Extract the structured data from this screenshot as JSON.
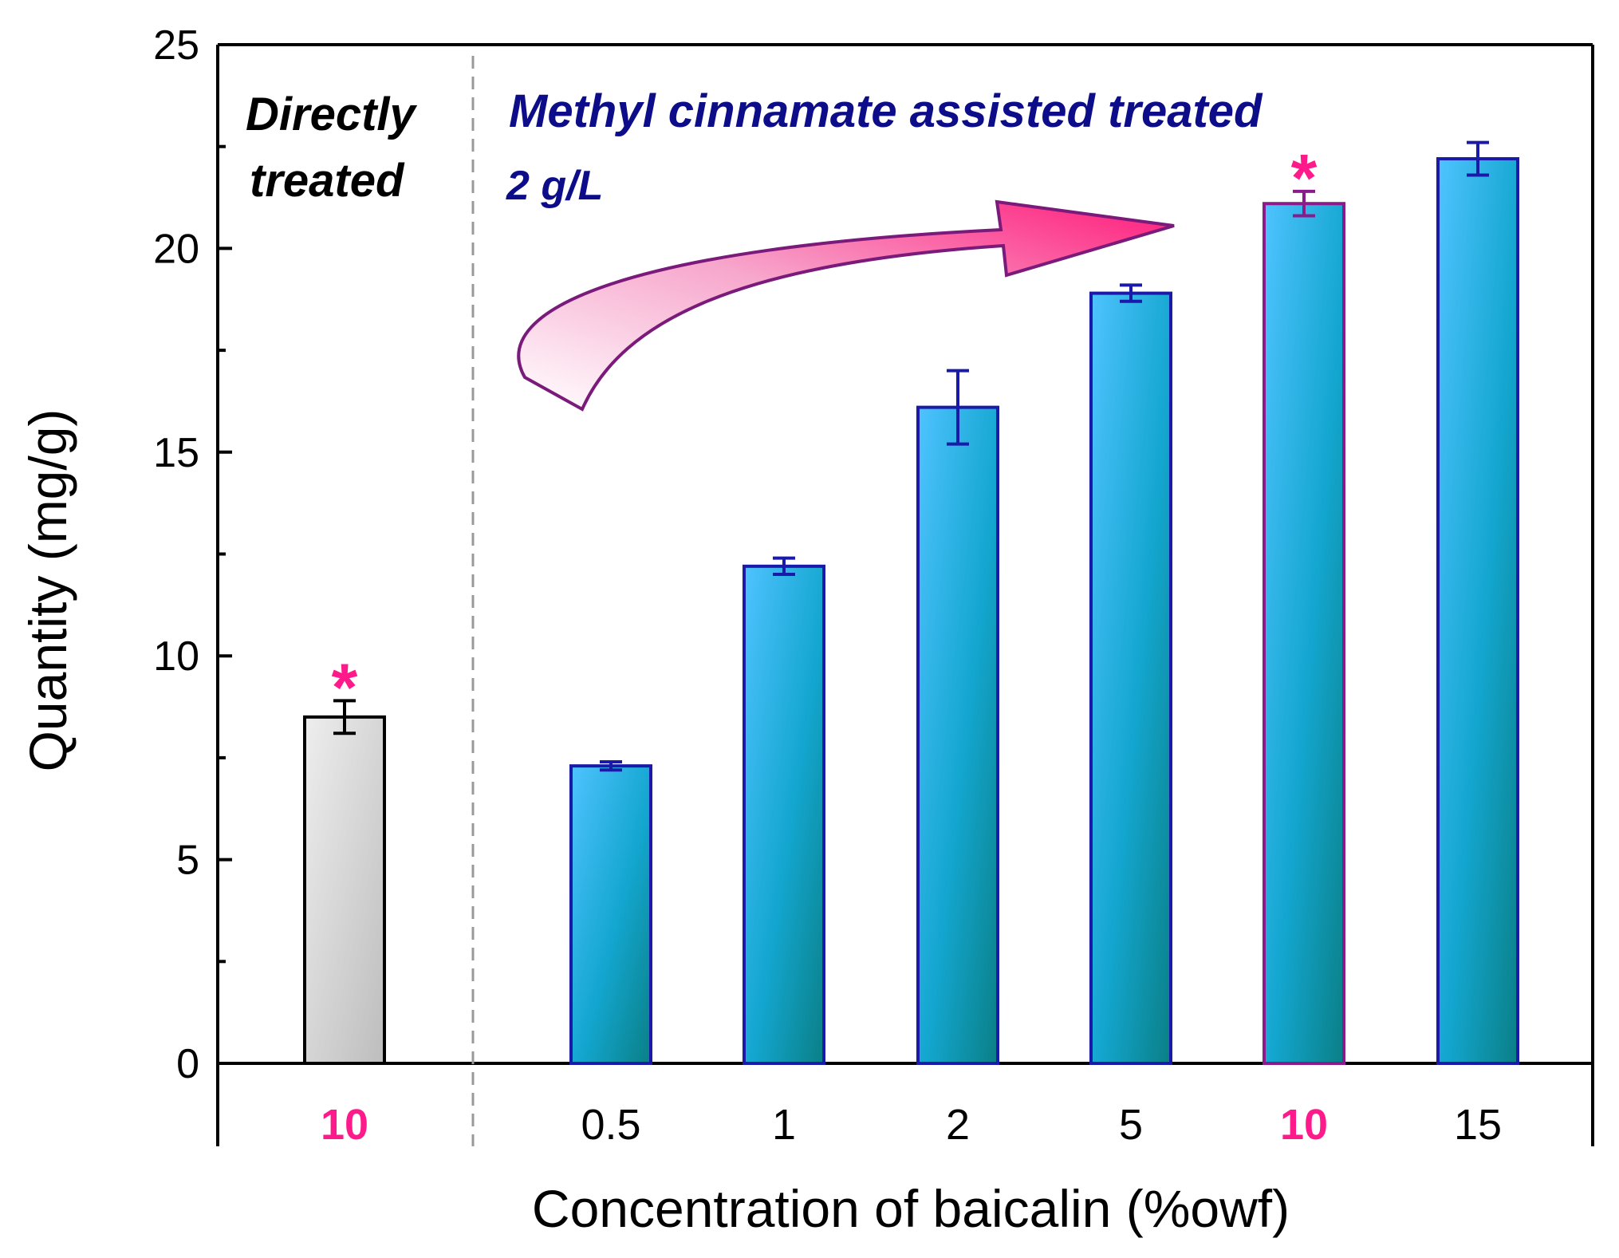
{
  "chart_data": {
    "type": "bar",
    "title": "",
    "xlabel": "Concentration of baicalin (%owf)",
    "ylabel": "Quantity (mg/g)",
    "ylim": [
      0,
      25
    ],
    "yticks": [
      "0",
      "5",
      "10",
      "15",
      "20",
      "25"
    ],
    "groups": [
      {
        "name": "Directly treated",
        "label_lines": [
          "Directly",
          "treated"
        ]
      },
      {
        "name": "Methyl cinnamate assisted treated",
        "label_lines": [
          "Methyl cinnamate assisted treated",
          "2 g/L"
        ]
      }
    ],
    "categories": [
      "10",
      "0.5",
      "1",
      "2",
      "5",
      "10",
      "15"
    ],
    "values": [
      8.5,
      7.3,
      12.2,
      16.1,
      18.9,
      21.1,
      22.2
    ],
    "errors": [
      0.4,
      0.1,
      0.2,
      0.9,
      0.2,
      0.3,
      0.4
    ],
    "group_index": [
      0,
      1,
      1,
      1,
      1,
      1,
      1
    ],
    "highlighted": [
      true,
      false,
      false,
      false,
      false,
      true,
      false
    ],
    "star_marker": "*",
    "colors": {
      "direct_fill_light": "#eeeeee",
      "direct_fill_dark": "#bdbdbd",
      "assisted_fill_light": "#4fc3ff",
      "assisted_fill_dark": "#0a7f86",
      "assisted_stroke": "#1a1aa8",
      "highlight": "#ff1a8c",
      "highlight_stroke": "#8b1a8b",
      "group1_text": "#000000",
      "group2_text": "#0d0d8a",
      "divider": "#999999"
    }
  }
}
